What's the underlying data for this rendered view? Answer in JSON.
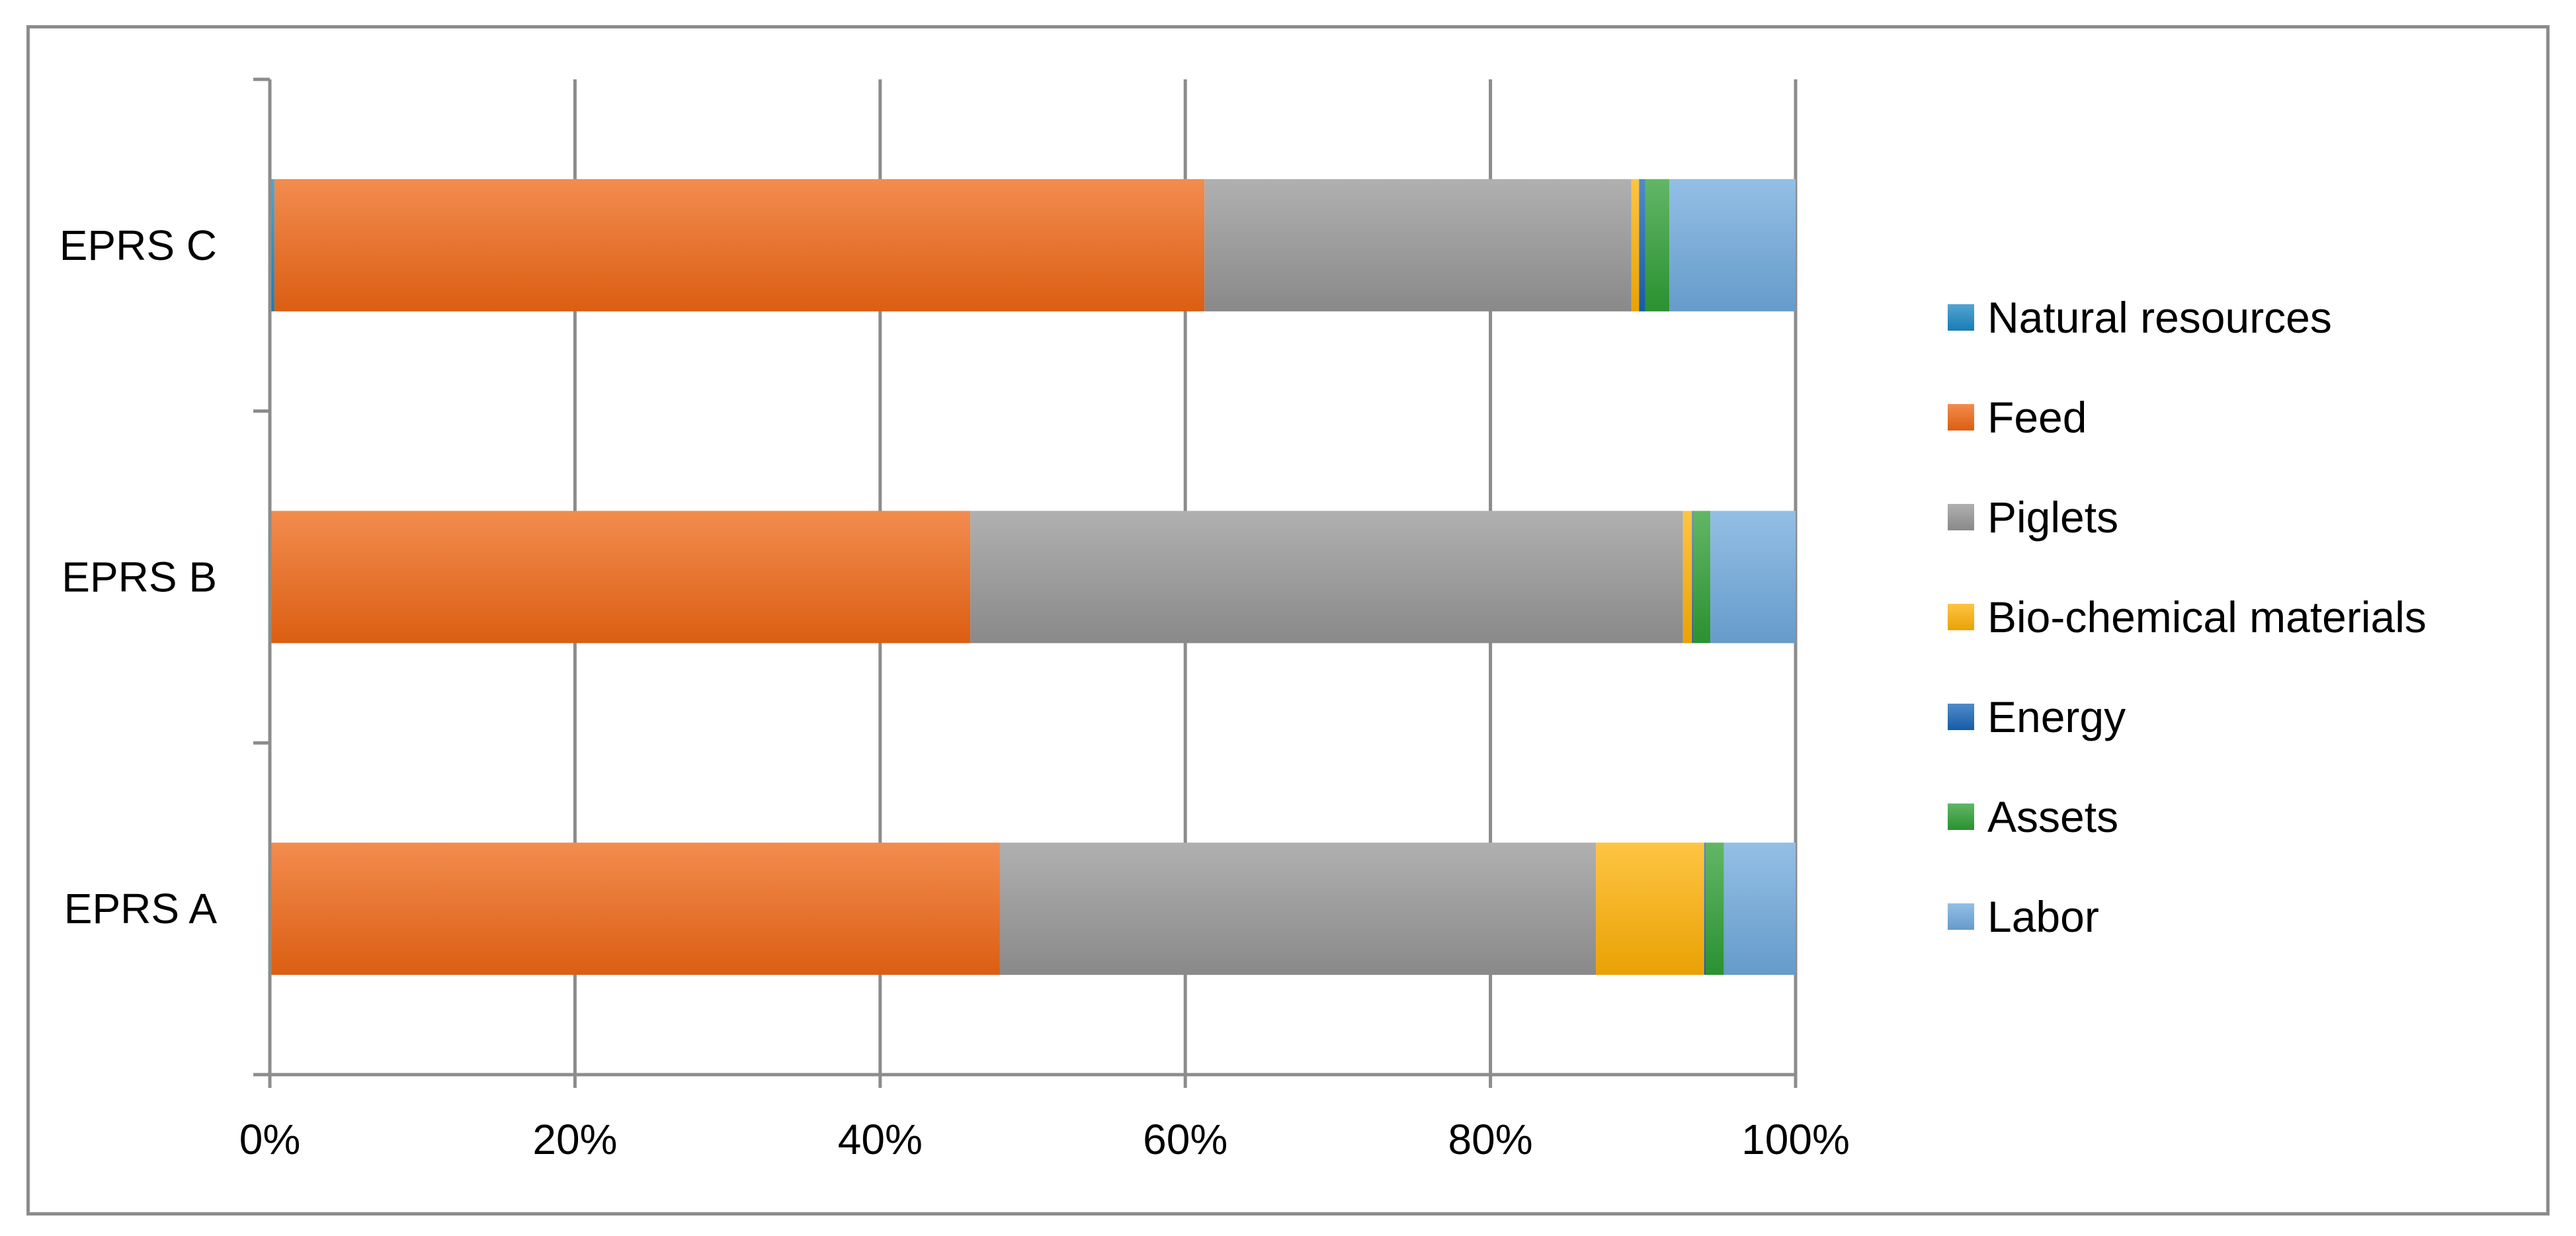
{
  "chart_data": {
    "type": "bar",
    "orientation": "horizontal",
    "stacked": "percent",
    "title": "",
    "xlabel": "",
    "ylabel": "",
    "xlim": [
      0,
      100
    ],
    "x_ticks": [
      "0%",
      "20%",
      "40%",
      "60%",
      "80%",
      "100%"
    ],
    "grid": "vertical",
    "legend_position": "right",
    "categories": [
      "EPRS C",
      "EPRS B",
      "EPRS A"
    ],
    "series": [
      {
        "name": "Natural resources",
        "color": "#1a87c4",
        "values": [
          0.3,
          0.1,
          0.1
        ]
      },
      {
        "name": "Feed",
        "color": "#ee6614",
        "values": [
          61.2,
          45.9,
          47.8
        ]
      },
      {
        "name": "Piglets",
        "color": "#959595",
        "values": [
          28.1,
          46.8,
          39.1
        ]
      },
      {
        "name": "Bio-chemical materials",
        "color": "#fdb004",
        "values": [
          0.5,
          0.6,
          7.1
        ]
      },
      {
        "name": "Energy",
        "color": "#1764b5",
        "values": [
          0.4,
          0.1,
          0.1
        ]
      },
      {
        "name": "Assets",
        "color": "#2e9e34",
        "values": [
          1.6,
          1.1,
          1.2
        ]
      },
      {
        "name": "Labor",
        "color": "#6fa9dc",
        "values": [
          8.3,
          5.6,
          4.7
        ]
      }
    ]
  }
}
